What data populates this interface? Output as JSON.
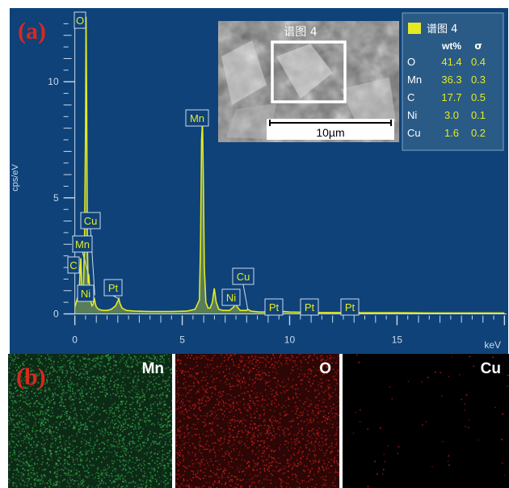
{
  "panel_labels": {
    "a": "(a)",
    "b": "(b)"
  },
  "colors": {
    "panel_bg": "#0f4278",
    "trace": "#e5ea22",
    "axis": "#c9dbef",
    "panel_label": "#d9281e"
  },
  "chart_data": {
    "type": "line",
    "title": "",
    "xlabel": "",
    "ylabel": "cps/eV",
    "x_unit": "keV",
    "xlim": [
      -0.4,
      20.1
    ],
    "ylim": [
      -0.4,
      13.0
    ],
    "x_ticks": [
      0,
      5,
      10,
      15
    ],
    "y_ticks": [
      0,
      5,
      10
    ],
    "series": [
      {
        "x": [
          0.0,
          0.1,
          0.2,
          0.25,
          0.28,
          0.3,
          0.32,
          0.35,
          0.4,
          0.45,
          0.5,
          0.52,
          0.55,
          0.58,
          0.62,
          0.65,
          0.7,
          0.75,
          0.8,
          0.85,
          0.9,
          0.93,
          0.95,
          1.0,
          1.1,
          1.3,
          1.5,
          1.7,
          1.9,
          2.0,
          2.05,
          2.1,
          2.2,
          2.4,
          2.8,
          3.5,
          4.5,
          5.2,
          5.6,
          5.8,
          5.85,
          5.9,
          5.94,
          5.98,
          6.03,
          6.1,
          6.2,
          6.3,
          6.4,
          6.49,
          6.58,
          6.7,
          6.9,
          7.2,
          7.4,
          7.48,
          7.56,
          7.7,
          8.0,
          8.05,
          8.2,
          8.6,
          9.0,
          9.4,
          9.5,
          10.0,
          11.0,
          12.0,
          13.0,
          14.0,
          15.0,
          16.5,
          18.0,
          20.0
        ],
        "y": [
          0.3,
          0.6,
          1.0,
          1.9,
          2.4,
          1.9,
          1.2,
          0.9,
          1.2,
          3.0,
          8.0,
          12.8,
          9.0,
          3.0,
          1.3,
          1.7,
          1.0,
          0.5,
          0.35,
          0.4,
          0.7,
          0.55,
          0.45,
          0.3,
          0.2,
          0.15,
          0.15,
          0.2,
          0.35,
          0.55,
          0.65,
          0.45,
          0.25,
          0.15,
          0.12,
          0.1,
          0.1,
          0.12,
          0.2,
          0.6,
          3.0,
          7.5,
          8.3,
          6.0,
          2.0,
          0.5,
          0.25,
          0.25,
          0.5,
          1.1,
          0.5,
          0.2,
          0.15,
          0.15,
          0.3,
          0.5,
          0.3,
          0.15,
          0.15,
          0.2,
          0.12,
          0.08,
          0.08,
          0.1,
          0.12,
          0.08,
          0.06,
          0.06,
          0.05,
          0.05,
          0.05,
          0.04,
          0.04,
          0.04
        ]
      }
    ],
    "peak_labels": [
      {
        "text": "O",
        "x": 0.52,
        "y": 12.8
      },
      {
        "text": "Mn",
        "x": 5.9,
        "y": 8.3
      },
      {
        "text": "Cu",
        "x": 0.93,
        "y": 0.8
      },
      {
        "text": "Mn",
        "x": 0.64,
        "y": 1.7
      },
      {
        "text": "C",
        "x": 0.28,
        "y": 2.4
      },
      {
        "text": "Ni",
        "x": 0.85,
        "y": 0.6
      },
      {
        "text": "Pt",
        "x": 2.05,
        "y": 0.65
      },
      {
        "text": "Ni",
        "x": 7.48,
        "y": 0.5
      },
      {
        "text": "Cu",
        "x": 8.05,
        "y": 0.2
      },
      {
        "text": "Pt",
        "x": 9.44,
        "y": 0.1
      },
      {
        "text": "Pt",
        "x": 11.07,
        "y": 0.06
      },
      {
        "text": "Pt",
        "x": 13.0,
        "y": 0.05
      }
    ]
  },
  "inset": {
    "title": "谱图 4",
    "scale_bar": "10µm"
  },
  "legend": {
    "series_name": "谱图 4",
    "headers": {
      "element": "",
      "wt": "wt%",
      "sigma": "σ"
    },
    "rows": [
      {
        "element": "O",
        "wt": "41.4",
        "sigma": "0.4"
      },
      {
        "element": "Mn",
        "wt": "36.3",
        "sigma": "0.3"
      },
      {
        "element": "C",
        "wt": "17.7",
        "sigma": "0.5"
      },
      {
        "element": "Ni",
        "wt": "3.0",
        "sigma": "0.1"
      },
      {
        "element": "Cu",
        "wt": "1.6",
        "sigma": "0.2"
      }
    ]
  },
  "maps": [
    {
      "element": "Mn",
      "color": "#2fa347",
      "bg": "#0d2a16"
    },
    {
      "element": "O",
      "color": "#c42018",
      "bg": "#2d0606"
    },
    {
      "element": "Cu",
      "color": "#c81e1e",
      "bg": "#000000"
    }
  ]
}
